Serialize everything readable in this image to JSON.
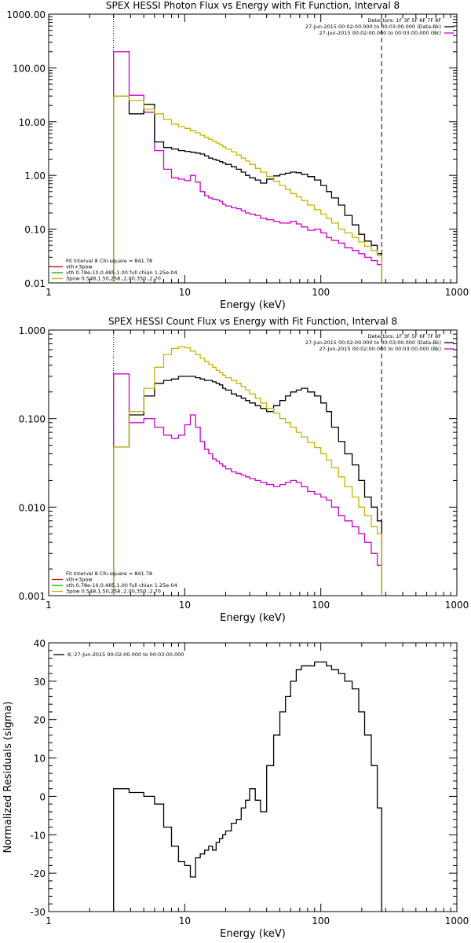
{
  "chart_data": [
    {
      "type": "line",
      "title": "SPEX HESSI Photon Flux vs Energy with Fit Function, Interval 8",
      "xlabel": "Energy (keV)",
      "ylabel": "",
      "xscale": "log",
      "yscale": "log",
      "xlim": [
        1,
        1000
      ],
      "ylim": [
        0.01,
        1000
      ],
      "x_ticks": [
        "1",
        "10",
        "100",
        "1000"
      ],
      "y_ticks": [
        "0.01",
        "0.10",
        "1.00",
        "10.00",
        "100.00",
        "1000.00"
      ],
      "legend_topright": [
        "Detectors: 1F 3F 5F 6F 7F 8F",
        "27-Jun-2015 00:02:00.000 to 00:03:00.000 (Data-Bk)",
        "27-Jun-2015 00:02:00.000 to 00:03:00.000 (Bk)"
      ],
      "legend_bottomleft": [
        "Fit Interval 8    Chi-square = 841.78",
        "vth+3pow",
        "vth 0.78e-10,0.485,1.00  full chian 1.25e-04",
        "3pow 0.548,1.50,258.,2.00,350.,2.70"
      ],
      "markers": {
        "vline_dotted": 3,
        "vline_dashed": 280
      },
      "bin_edges": [
        3,
        3.9,
        5,
        6,
        7,
        8,
        9,
        10,
        11,
        12,
        13,
        14,
        15,
        16,
        17,
        18,
        19,
        20,
        22,
        24,
        26,
        28,
        30,
        33,
        36,
        40,
        45,
        50,
        55,
        60,
        66,
        72,
        80,
        90,
        100,
        110,
        120,
        135,
        150,
        170,
        190,
        210,
        235,
        260,
        280
      ],
      "series": [
        {
          "name": "Data-Bk",
          "color": "#000000",
          "values": [
            30,
            14,
            21,
            4.2,
            3.3,
            3.1,
            2.9,
            2.8,
            2.7,
            2.6,
            2.5,
            2.3,
            2.1,
            2,
            1.9,
            1.8,
            1.7,
            1.6,
            1.45,
            1.3,
            1.15,
            1,
            0.9,
            0.82,
            0.72,
            0.85,
            0.98,
            1.05,
            1.1,
            1.15,
            1.12,
            1.05,
            0.95,
            0.82,
            0.65,
            0.5,
            0.38,
            0.28,
            0.18,
            0.12,
            0.08,
            0.06,
            0.05,
            0.035
          ]
        },
        {
          "name": "Bk",
          "color": "#d000d0",
          "values": [
            200,
            31,
            15,
            2.9,
            1.3,
            0.9,
            0.85,
            0.8,
            1,
            0.75,
            0.5,
            0.42,
            0.38,
            0.36,
            0.35,
            0.33,
            0.29,
            0.27,
            0.25,
            0.24,
            0.22,
            0.2,
            0.19,
            0.18,
            0.16,
            0.15,
            0.14,
            0.13,
            0.13,
            0.14,
            0.125,
            0.11,
            0.095,
            0.1,
            0.085,
            0.07,
            0.062,
            0.055,
            0.045,
            0.04,
            0.035,
            0.03,
            0.026,
            0.022
          ]
        },
        {
          "name": "Fit",
          "color": "#c8b400",
          "values": [
            30,
            25,
            17,
            14,
            11,
            9,
            8,
            7.5,
            6.8,
            6.2,
            5.6,
            5.1,
            4.7,
            4.3,
            4,
            3.7,
            3.4,
            3.1,
            2.75,
            2.4,
            2.1,
            1.85,
            1.6,
            1.35,
            1.15,
            0.95,
            0.78,
            0.65,
            0.55,
            0.46,
            0.4,
            0.34,
            0.28,
            0.23,
            0.19,
            0.16,
            0.13,
            0.1,
            0.085,
            0.07,
            0.058,
            0.048,
            0.04,
            0.032
          ]
        }
      ]
    },
    {
      "type": "line",
      "title": "SPEX HESSI Count Flux vs Energy with Fit Function, Interval 8",
      "xlabel": "Energy (keV)",
      "ylabel": "",
      "xscale": "log",
      "yscale": "log",
      "xlim": [
        1,
        1000
      ],
      "ylim": [
        0.001,
        1
      ],
      "x_ticks": [
        "1",
        "10",
        "100",
        "1000"
      ],
      "y_ticks": [
        "0.001",
        "0.010",
        "0.100",
        "1.000"
      ],
      "legend_topright": [
        "Detectors: 1F 3F 5F 6F 7F 8F",
        "27-Jun-2015 00:02:00.000 to 00:03:00.000 (Data-Bk)",
        "27-Jun-2015 00:02:00.000 to 00:03:00.000 (Bk)"
      ],
      "legend_bottomleft": [
        "Fit Interval 8    Chi-square = 841.78",
        "vth+3pow",
        "vth 0.78e-10,0.485,1.00  full chian 1.25e-04",
        "3pow 0.548,1.50,258.,2.00,350.,2.70"
      ],
      "markers": {
        "vline_dotted": 3,
        "vline_dashed": 280
      },
      "bin_edges": [
        3,
        3.9,
        5,
        6,
        7,
        8,
        9,
        10,
        11,
        12,
        13,
        14,
        15,
        16,
        17,
        18,
        19,
        20,
        22,
        24,
        26,
        28,
        30,
        33,
        36,
        40,
        45,
        50,
        55,
        60,
        66,
        72,
        80,
        90,
        100,
        110,
        120,
        135,
        150,
        170,
        190,
        210,
        235,
        260,
        280
      ],
      "series": [
        {
          "name": "Data-Bk",
          "color": "#000000",
          "values": [
            0.048,
            0.11,
            0.18,
            0.25,
            0.27,
            0.28,
            0.3,
            0.3,
            0.3,
            0.29,
            0.28,
            0.27,
            0.27,
            0.26,
            0.25,
            0.24,
            0.22,
            0.21,
            0.19,
            0.18,
            0.17,
            0.16,
            0.15,
            0.14,
            0.13,
            0.12,
            0.14,
            0.16,
            0.18,
            0.2,
            0.21,
            0.22,
            0.2,
            0.18,
            0.15,
            0.12,
            0.08,
            0.055,
            0.04,
            0.03,
            0.02,
            0.013,
            0.01,
            0.007
          ]
        },
        {
          "name": "Bk",
          "color": "#d000d0",
          "values": [
            0.32,
            0.09,
            0.1,
            0.08,
            0.065,
            0.06,
            0.065,
            0.085,
            0.11,
            0.08,
            0.055,
            0.045,
            0.04,
            0.035,
            0.033,
            0.031,
            0.029,
            0.027,
            0.025,
            0.024,
            0.023,
            0.022,
            0.021,
            0.02,
            0.019,
            0.018,
            0.017,
            0.018,
            0.019,
            0.02,
            0.019,
            0.017,
            0.015,
            0.014,
            0.013,
            0.012,
            0.01,
            0.008,
            0.007,
            0.006,
            0.005,
            0.004,
            0.003,
            0.0022
          ]
        },
        {
          "name": "Fit",
          "color": "#c8b400",
          "values": [
            0.048,
            0.12,
            0.22,
            0.38,
            0.53,
            0.62,
            0.65,
            0.63,
            0.58,
            0.53,
            0.48,
            0.44,
            0.41,
            0.38,
            0.35,
            0.33,
            0.31,
            0.29,
            0.27,
            0.25,
            0.23,
            0.21,
            0.19,
            0.17,
            0.15,
            0.13,
            0.115,
            0.1,
            0.09,
            0.08,
            0.07,
            0.062,
            0.054,
            0.047,
            0.04,
            0.034,
            0.028,
            0.022,
            0.017,
            0.013,
            0.01,
            0.008,
            0.006,
            0.005
          ]
        }
      ]
    },
    {
      "type": "line",
      "title": "",
      "xlabel": "Energy (keV)",
      "ylabel": "Normalized Residuals (sigma)",
      "xscale": "log",
      "yscale": "linear",
      "xlim": [
        1,
        1000
      ],
      "ylim": [
        -30,
        40
      ],
      "x_ticks": [
        "1",
        "10",
        "100",
        "1000"
      ],
      "y_ticks": [
        "-30",
        "-20",
        "-10",
        "0",
        "10",
        "20",
        "30",
        "40"
      ],
      "legend_topleft": [
        "8, 27-Jun-2015 00:02:00.000 to 00:03:00.000"
      ],
      "bin_edges": [
        3,
        3.9,
        5,
        6,
        7,
        8,
        9,
        10,
        11,
        12,
        13,
        14,
        15,
        16,
        17,
        18,
        19,
        20,
        22,
        24,
        26,
        28,
        30,
        33,
        36,
        40,
        45,
        50,
        55,
        60,
        66,
        72,
        80,
        90,
        100,
        110,
        120,
        135,
        150,
        170,
        190,
        210,
        235,
        260,
        280
      ],
      "series": [
        {
          "name": "8, 27-Jun-2015 00:02:00.000 to 00:03:00.000",
          "color": "#000000",
          "values": [
            2,
            1,
            0,
            -2,
            -8,
            -13,
            -17,
            -18,
            -21,
            -16,
            -15,
            -14,
            -13,
            -14,
            -12,
            -11,
            -10,
            -9,
            -7,
            -6,
            -3,
            -1,
            2,
            -1,
            -4,
            8,
            16,
            22,
            26,
            30,
            33,
            34,
            34,
            35,
            35,
            34,
            33,
            32,
            30,
            28,
            22,
            16,
            8,
            -3
          ]
        }
      ]
    }
  ]
}
